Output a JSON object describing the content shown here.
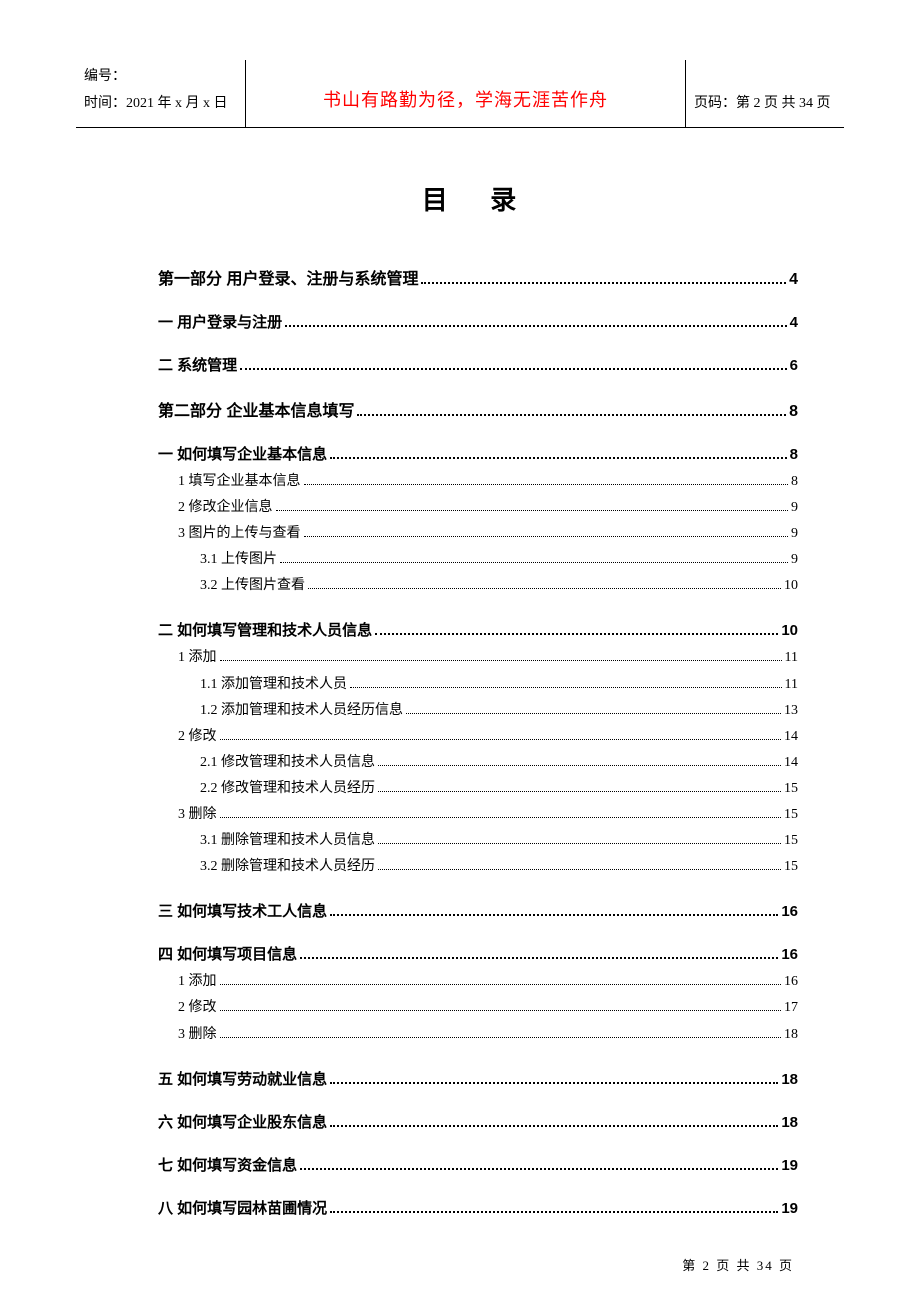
{
  "header": {
    "doc_no_label": "编号：",
    "time_label": "时间：",
    "time_value": "2021 年 x 月 x 日",
    "motto": "书山有路勤为径，学海无涯苦作舟",
    "page_label": "页码：",
    "page_current_label": "第 2 页",
    "page_total_label": "共 34 页",
    "motto_color": "#ff0000"
  },
  "toc_title": "目 录",
  "toc": [
    {
      "level": "part",
      "label": "第一部分  用户登录、注册与系统管理",
      "page": "4",
      "gap_after": true
    },
    {
      "level": "sec",
      "label": "一  用户登录与注册",
      "page": "4",
      "gap_after": true
    },
    {
      "level": "sec",
      "label": "二  系统管理",
      "page": "6",
      "gap_after": true
    },
    {
      "level": "part",
      "label": "第二部分  企业基本信息填写",
      "page": "8",
      "gap_after": true
    },
    {
      "level": "sec",
      "label": "一  如何填写企业基本信息",
      "page": "8"
    },
    {
      "level": "sub1",
      "label": "1  填写企业基本信息",
      "page": "8"
    },
    {
      "level": "sub1",
      "label": "2  修改企业信息",
      "page": "9"
    },
    {
      "level": "sub1",
      "label": "3  图片的上传与查看",
      "page": "9"
    },
    {
      "level": "sub2",
      "label": "3.1 上传图片",
      "page": "9"
    },
    {
      "level": "sub2",
      "label": "3.2 上传图片查看",
      "page": "10",
      "gap_after": true
    },
    {
      "level": "sec",
      "label": "二  如何填写管理和技术人员信息",
      "page": "10"
    },
    {
      "level": "sub1",
      "label": "1  添加",
      "page": "11"
    },
    {
      "level": "sub2",
      "label": "1.1 添加管理和技术人员",
      "page": "11"
    },
    {
      "level": "sub2",
      "label": "1.2 添加管理和技术人员经历信息",
      "page": "13"
    },
    {
      "level": "sub1",
      "label": "2  修改",
      "page": "14"
    },
    {
      "level": "sub2",
      "label": "2.1 修改管理和技术人员信息",
      "page": "14"
    },
    {
      "level": "sub2",
      "label": "2.2 修改管理和技术人员经历",
      "page": "15"
    },
    {
      "level": "sub1",
      "label": "3  删除",
      "page": "15"
    },
    {
      "level": "sub2",
      "label": "3.1  删除管理和技术人员信息",
      "page": "15"
    },
    {
      "level": "sub2",
      "label": "3.2  删除管理和技术人员经历",
      "page": "15",
      "gap_after": true
    },
    {
      "level": "sec",
      "label": "三  如何填写技术工人信息",
      "page": "16",
      "gap_after": true
    },
    {
      "level": "sec",
      "label": "四  如何填写项目信息",
      "page": "16"
    },
    {
      "level": "sub1",
      "label": "1  添加",
      "page": "16"
    },
    {
      "level": "sub1",
      "label": "2  修改",
      "page": "17"
    },
    {
      "level": "sub1",
      "label": "3  删除",
      "page": "18",
      "gap_after": true
    },
    {
      "level": "sec",
      "label": "五  如何填写劳动就业信息",
      "page": "18",
      "gap_after": true
    },
    {
      "level": "sec",
      "label": "六  如何填写企业股东信息",
      "page": "18",
      "gap_after": true
    },
    {
      "level": "sec",
      "label": "七  如何填写资金信息",
      "page": "19",
      "gap_after": true
    },
    {
      "level": "sec",
      "label": "八  如何填写园林苗圃情况",
      "page": "19"
    }
  ],
  "footer": "第 2 页 共 34 页",
  "colors": {
    "text": "#000000",
    "background": "#ffffff",
    "border": "#000000"
  }
}
